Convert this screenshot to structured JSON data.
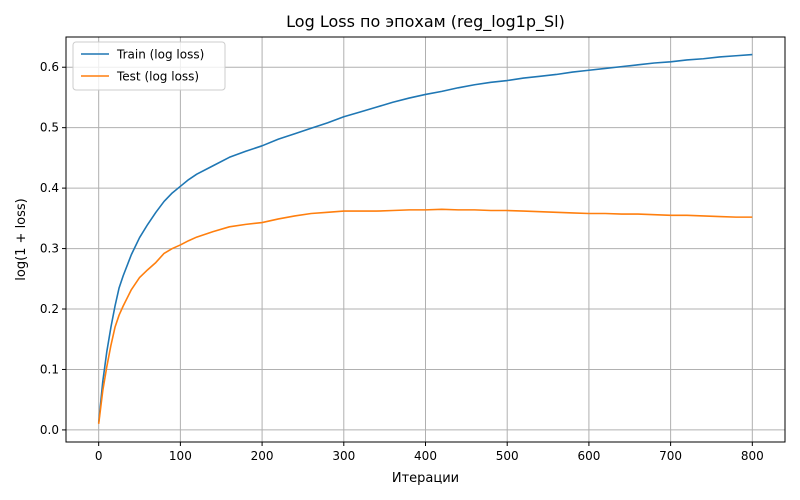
{
  "chart_data": {
    "type": "line",
    "title": "Log Loss по эпохам (reg_log1p_Sl)",
    "xlabel": "Итерации",
    "ylabel": "log(1 + loss)",
    "xlim": [
      -40,
      840
    ],
    "ylim": [
      -0.02,
      0.65
    ],
    "xticks": [
      0,
      100,
      200,
      300,
      400,
      500,
      600,
      700,
      800
    ],
    "yticks": [
      0.0,
      0.1,
      0.2,
      0.3,
      0.4,
      0.5,
      0.6
    ],
    "ytick_labels": [
      "0.0",
      "0.1",
      "0.2",
      "0.3",
      "0.4",
      "0.5",
      "0.6"
    ],
    "grid": true,
    "legend_position": "top-left",
    "series": [
      {
        "name": "Train (log loss)",
        "color": "#1f77b4",
        "x": [
          0,
          5,
          10,
          15,
          20,
          25,
          30,
          40,
          50,
          60,
          70,
          80,
          90,
          100,
          110,
          120,
          140,
          160,
          180,
          200,
          220,
          240,
          260,
          280,
          300,
          320,
          340,
          360,
          380,
          400,
          420,
          440,
          460,
          480,
          500,
          520,
          540,
          560,
          580,
          600,
          620,
          640,
          660,
          680,
          700,
          720,
          740,
          760,
          780,
          800
        ],
        "y": [
          0.012,
          0.08,
          0.13,
          0.17,
          0.205,
          0.235,
          0.255,
          0.29,
          0.318,
          0.34,
          0.36,
          0.378,
          0.392,
          0.403,
          0.414,
          0.423,
          0.437,
          0.451,
          0.461,
          0.47,
          0.481,
          0.49,
          0.499,
          0.508,
          0.518,
          0.526,
          0.534,
          0.542,
          0.549,
          0.555,
          0.56,
          0.566,
          0.571,
          0.575,
          0.578,
          0.582,
          0.585,
          0.588,
          0.592,
          0.595,
          0.598,
          0.601,
          0.604,
          0.607,
          0.609,
          0.612,
          0.614,
          0.617,
          0.619,
          0.621
        ]
      },
      {
        "name": "Test (log loss)",
        "color": "#ff7f0e",
        "x": [
          0,
          5,
          10,
          15,
          20,
          25,
          30,
          40,
          50,
          60,
          70,
          80,
          90,
          100,
          110,
          120,
          140,
          160,
          180,
          200,
          220,
          240,
          260,
          280,
          300,
          320,
          340,
          360,
          380,
          400,
          420,
          440,
          460,
          480,
          500,
          520,
          540,
          560,
          580,
          600,
          620,
          640,
          660,
          680,
          700,
          720,
          740,
          760,
          780,
          800
        ],
        "y": [
          0.01,
          0.065,
          0.105,
          0.14,
          0.17,
          0.19,
          0.205,
          0.232,
          0.252,
          0.265,
          0.277,
          0.292,
          0.3,
          0.306,
          0.313,
          0.319,
          0.328,
          0.336,
          0.34,
          0.343,
          0.349,
          0.354,
          0.358,
          0.36,
          0.362,
          0.362,
          0.362,
          0.363,
          0.364,
          0.364,
          0.365,
          0.364,
          0.364,
          0.363,
          0.363,
          0.362,
          0.361,
          0.36,
          0.359,
          0.358,
          0.358,
          0.357,
          0.357,
          0.356,
          0.355,
          0.355,
          0.354,
          0.353,
          0.352,
          0.352
        ]
      }
    ]
  }
}
